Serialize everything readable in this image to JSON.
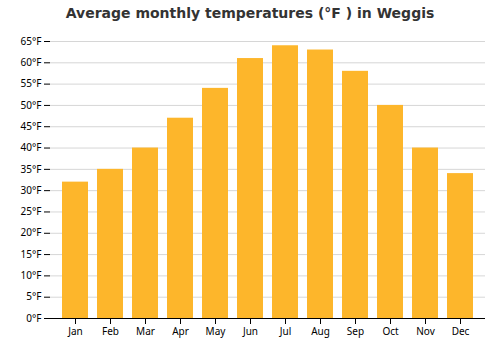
{
  "chart_data": {
    "type": "bar",
    "title": "Average monthly temperatures (°F ) in Weggis",
    "categories": [
      "Jan",
      "Feb",
      "Mar",
      "Apr",
      "May",
      "Jun",
      "Jul",
      "Aug",
      "Sep",
      "Oct",
      "Nov",
      "Dec"
    ],
    "values": [
      32,
      35,
      40,
      47,
      54,
      61,
      64,
      63,
      58,
      50,
      40,
      34
    ],
    "color": "#FDB62B",
    "ylim": [
      0,
      65
    ],
    "yticks": [
      {
        "value": 0,
        "label": "0°F"
      },
      {
        "value": 5,
        "label": "5°F"
      },
      {
        "value": 10,
        "label": "10°F"
      },
      {
        "value": 15,
        "label": "15°F"
      },
      {
        "value": 20,
        "label": "20°F"
      },
      {
        "value": 25,
        "label": "25°F"
      },
      {
        "value": 30,
        "label": "30°F"
      },
      {
        "value": 35,
        "label": "35°F"
      },
      {
        "value": 40,
        "label": "40°F"
      },
      {
        "value": 45,
        "label": "45°F"
      },
      {
        "value": 50,
        "label": "50°F"
      },
      {
        "value": 55,
        "label": "55°F"
      },
      {
        "value": 60,
        "label": "60°F"
      },
      {
        "value": 65,
        "label": "65°F"
      }
    ],
    "grid": true
  }
}
